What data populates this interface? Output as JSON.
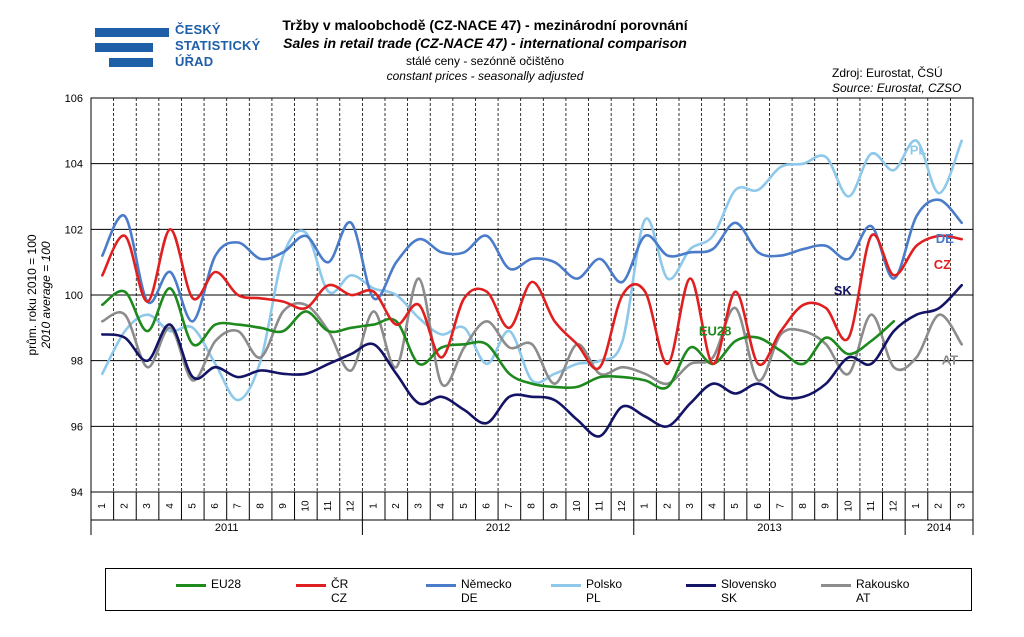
{
  "logo": {
    "lines": [
      "ČESKÝ",
      "STATISTICKÝ",
      "ÚŘAD"
    ],
    "color": "#1f5fa8"
  },
  "header": {
    "title_cz": "Tržby v maloobchodě (CZ-NACE 47) - mezinárodní porovnání",
    "title_en": "Sales in retail trade (CZ-NACE 47) - international comparison",
    "subtitle_cz": "stálé ceny - sezónně očištěno",
    "subtitle_en": "constant prices - seasonally adjusted",
    "source_cz": "Zdroj: Eurostat, ČSÚ",
    "source_en": "Source: Eurostat, CZSO"
  },
  "chart_data": {
    "type": "line",
    "ylabel": "prům. roku 2010 = 100",
    "ylabel_en": "2010 average = 100",
    "ylim": [
      94,
      106
    ],
    "yticks": [
      94,
      96,
      98,
      100,
      102,
      104,
      106
    ],
    "grid": true,
    "legend_position": "bottom",
    "months": [
      "1",
      "2",
      "3",
      "4",
      "5",
      "6",
      "7",
      "8",
      "9",
      "10",
      "11",
      "12",
      "1",
      "2",
      "3",
      "4",
      "5",
      "6",
      "7",
      "8",
      "9",
      "10",
      "11",
      "12",
      "1",
      "2",
      "3",
      "4",
      "5",
      "6",
      "7",
      "8",
      "9",
      "10",
      "11",
      "12",
      "1",
      "2",
      "3"
    ],
    "year_groups": [
      {
        "label": "2011",
        "count": 12
      },
      {
        "label": "2012",
        "count": 12
      },
      {
        "label": "2013",
        "count": 12
      },
      {
        "label": "2014",
        "count": 3
      }
    ],
    "series": [
      {
        "name": "EU28",
        "legend": [
          "EU28"
        ],
        "end_label": "EU28",
        "color": "#1e8a1e",
        "values": [
          99.7,
          100.1,
          98.9,
          100.2,
          98.5,
          99.1,
          99.1,
          99.0,
          98.9,
          99.5,
          98.9,
          99.0,
          99.1,
          99.2,
          97.9,
          98.4,
          98.5,
          98.5,
          97.6,
          97.3,
          97.2,
          97.2,
          97.5,
          97.5,
          97.4,
          97.2,
          98.4,
          97.9,
          98.6,
          98.7,
          98.3,
          97.9,
          98.7,
          98.2,
          98.6,
          99.2,
          null,
          null,
          null
        ]
      },
      {
        "name": "ČR",
        "legend": [
          "ČR",
          "CZ"
        ],
        "end_label": "CZ",
        "color": "#e02020",
        "values": [
          100.6,
          101.8,
          99.8,
          102.0,
          99.9,
          100.7,
          100.0,
          99.9,
          99.8,
          99.6,
          100.3,
          100.0,
          100.1,
          99.1,
          99.7,
          98.1,
          99.9,
          100.1,
          99.0,
          100.4,
          99.2,
          98.5,
          97.8,
          100.0,
          100.1,
          97.9,
          100.5,
          97.9,
          100.1,
          97.9,
          98.9,
          99.7,
          99.6,
          98.7,
          101.8,
          100.6,
          101.5,
          101.8,
          101.7
        ]
      },
      {
        "name": "Německo",
        "legend": [
          "Německo",
          "DE"
        ],
        "end_label": "DE",
        "color": "#4a7cc9",
        "values": [
          101.2,
          102.4,
          99.8,
          100.7,
          99.2,
          101.2,
          101.6,
          101.1,
          101.3,
          101.8,
          101.0,
          102.2,
          99.9,
          101.0,
          101.7,
          101.3,
          101.3,
          101.8,
          100.8,
          101.1,
          101.0,
          100.5,
          101.1,
          100.4,
          101.8,
          101.2,
          101.3,
          101.4,
          102.2,
          101.3,
          101.2,
          101.4,
          101.5,
          101.1,
          102.1,
          100.5,
          102.4,
          102.9,
          102.2
        ]
      },
      {
        "name": "Polsko",
        "legend": [
          "Polsko",
          "PL"
        ],
        "end_label": "PL",
        "color": "#8ec8ea",
        "values": [
          97.6,
          98.9,
          99.4,
          98.9,
          99.0,
          97.9,
          96.8,
          98.0,
          101.2,
          101.9,
          100.1,
          100.6,
          100.2,
          100.0,
          99.3,
          98.8,
          99.0,
          97.9,
          98.9,
          97.4,
          97.6,
          97.9,
          98.0,
          98.6,
          102.3,
          100.5,
          101.4,
          101.8,
          103.2,
          103.2,
          103.9,
          104.0,
          104.2,
          103.0,
          104.3,
          103.8,
          104.7,
          103.1,
          104.7
        ]
      },
      {
        "name": "Slovensko",
        "legend": [
          "Slovensko",
          "SK"
        ],
        "end_label": "SK",
        "color": "#141466",
        "values": [
          98.8,
          98.7,
          98.0,
          99.1,
          97.5,
          97.8,
          97.5,
          97.7,
          97.6,
          97.6,
          97.9,
          98.2,
          98.5,
          97.6,
          96.7,
          96.9,
          96.5,
          96.1,
          96.9,
          96.9,
          96.8,
          96.2,
          95.7,
          96.6,
          96.3,
          96.0,
          96.7,
          97.3,
          97.0,
          97.3,
          96.9,
          96.9,
          97.3,
          98.1,
          97.9,
          98.9,
          99.4,
          99.6,
          100.3
        ]
      },
      {
        "name": "Rakousko",
        "legend": [
          "Rakousko",
          "AT"
        ],
        "end_label": "AT",
        "color": "#8c8c8c",
        "values": [
          99.2,
          99.4,
          97.8,
          99.0,
          97.4,
          98.6,
          98.9,
          98.1,
          99.5,
          99.7,
          98.9,
          97.7,
          99.5,
          97.8,
          100.5,
          97.3,
          98.4,
          99.2,
          98.4,
          98.5,
          97.3,
          98.5,
          97.6,
          97.8,
          97.6,
          97.3,
          97.9,
          98.1,
          99.6,
          97.4,
          98.8,
          98.9,
          98.5,
          97.6,
          99.4,
          97.8,
          98.1,
          99.4,
          98.5
        ]
      }
    ]
  }
}
